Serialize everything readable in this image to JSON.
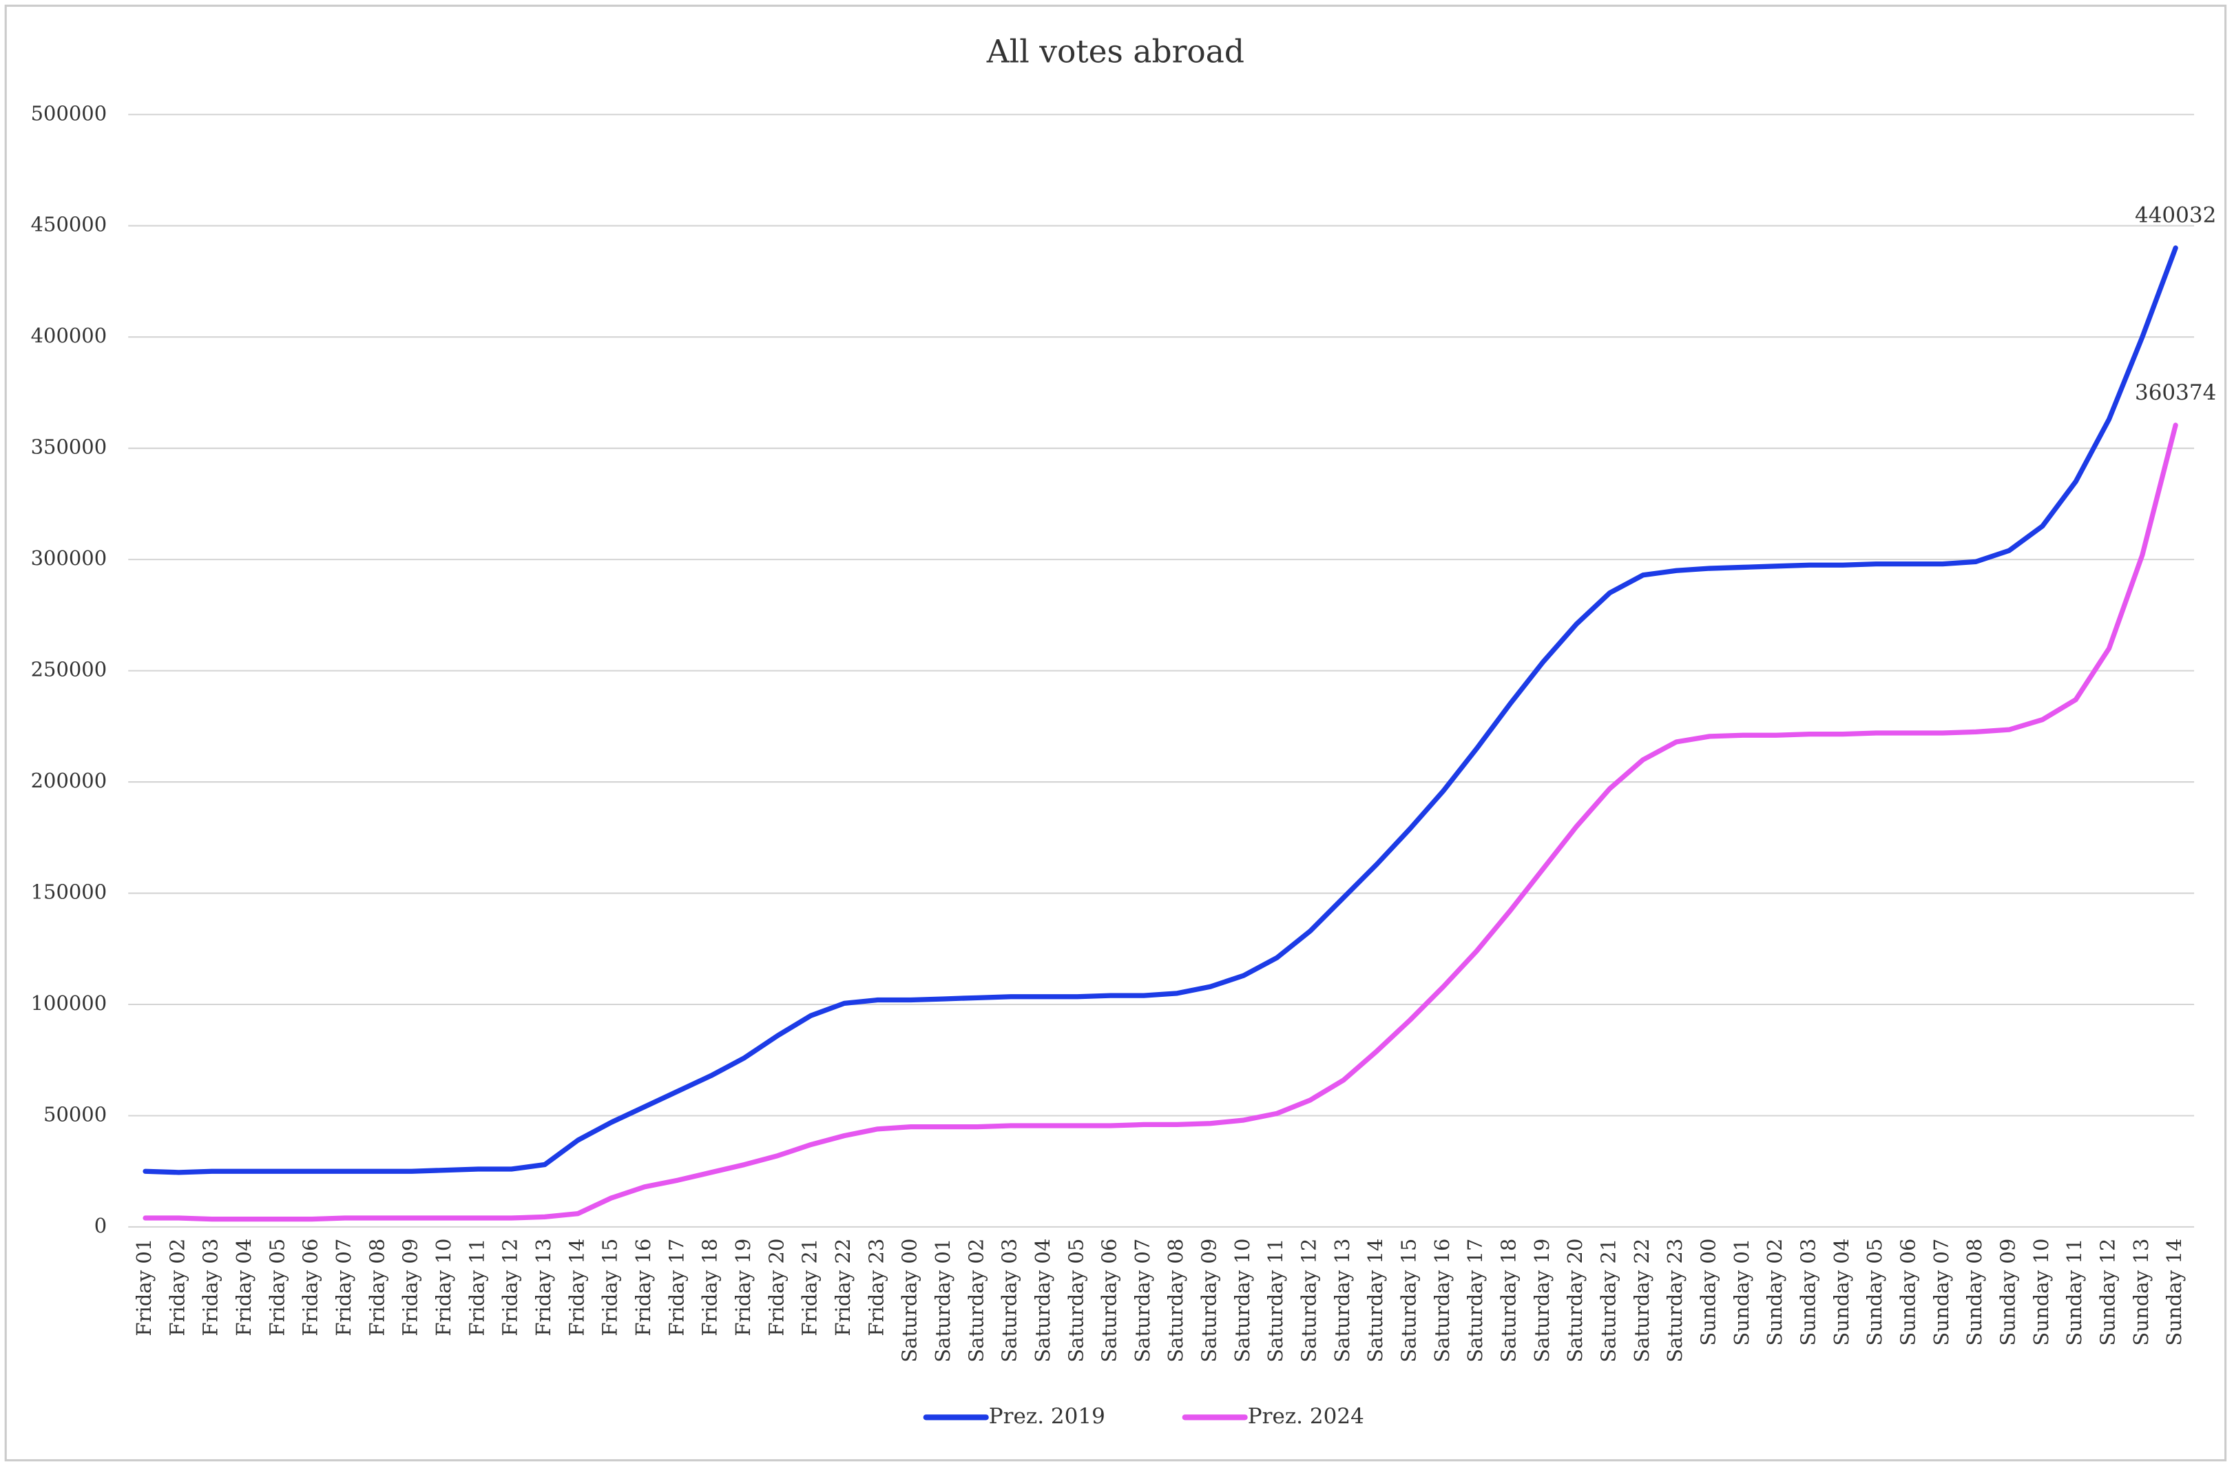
{
  "chart_data": {
    "type": "line",
    "title": "All votes abroad",
    "categories": [
      "Friday 01",
      "Friday 02",
      "Friday 03",
      "Friday 04",
      "Friday 05",
      "Friday 06",
      "Friday 07",
      "Friday 08",
      "Friday 09",
      "Friday 10",
      "Friday 11",
      "Friday 12",
      "Friday 13",
      "Friday 14",
      "Friday 15",
      "Friday 16",
      "Friday 17",
      "Friday 18",
      "Friday 19",
      "Friday 20",
      "Friday 21",
      "Friday 22",
      "Friday 23",
      "Saturday 00",
      "Saturday 01",
      "Saturday 02",
      "Saturday 03",
      "Saturday 04",
      "Saturday 05",
      "Saturday 06",
      "Saturday 07",
      "Saturday 08",
      "Saturday 09",
      "Saturday 10",
      "Saturday 11",
      "Saturday 12",
      "Saturday 13",
      "Saturday 14",
      "Saturday 15",
      "Saturday 16",
      "Saturday 17",
      "Saturday 18",
      "Saturday 19",
      "Saturday 20",
      "Saturday 21",
      "Saturday 22",
      "Saturday 23",
      "Sunday 00",
      "Sunday 01",
      "Sunday 02",
      "Sunday 03",
      "Sunday 04",
      "Sunday 05",
      "Sunday 06",
      "Sunday 07",
      "Sunday 08",
      "Sunday 09",
      "Sunday 10",
      "Sunday 11",
      "Sunday 12",
      "Sunday 13",
      "Sunday 14"
    ],
    "series": [
      {
        "name": "Prez. 2019",
        "color": "#1c3be6",
        "values": [
          25000,
          24500,
          25000,
          25000,
          25000,
          25000,
          25000,
          25000,
          25000,
          25500,
          26000,
          26000,
          28000,
          39000,
          47000,
          54000,
          61000,
          68000,
          76000,
          86000,
          95000,
          100500,
          102000,
          102000,
          102500,
          103000,
          103500,
          103500,
          103500,
          104000,
          104000,
          105000,
          108000,
          113000,
          121000,
          133000,
          148000,
          163000,
          179000,
          196000,
          215000,
          235000,
          254000,
          271000,
          285000,
          293000,
          295000,
          296000,
          296500,
          297000,
          297500,
          297500,
          298000,
          298000,
          298000,
          299000,
          304000,
          315000,
          335000,
          363000,
          400000,
          440032
        ]
      },
      {
        "name": "Prez. 2024",
        "color": "#e556f0",
        "values": [
          4000,
          4000,
          3500,
          3500,
          3500,
          3500,
          4000,
          4000,
          4000,
          4000,
          4000,
          4000,
          4500,
          6000,
          13000,
          18000,
          21000,
          24500,
          28000,
          32000,
          37000,
          41000,
          44000,
          45000,
          45000,
          45000,
          45500,
          45500,
          45500,
          45500,
          46000,
          46000,
          46500,
          48000,
          51000,
          57000,
          66000,
          79000,
          93000,
          108000,
          124000,
          142000,
          161000,
          180000,
          197000,
          210000,
          218000,
          220500,
          221000,
          221000,
          221500,
          221500,
          222000,
          222000,
          222000,
          222500,
          223500,
          228000,
          237000,
          260000,
          302000,
          360374
        ]
      }
    ],
    "ylim": [
      0,
      500000
    ],
    "yticks": [
      0,
      50000,
      100000,
      150000,
      200000,
      250000,
      300000,
      350000,
      400000,
      450000,
      500000
    ],
    "grid": true,
    "legend": "bottom"
  }
}
